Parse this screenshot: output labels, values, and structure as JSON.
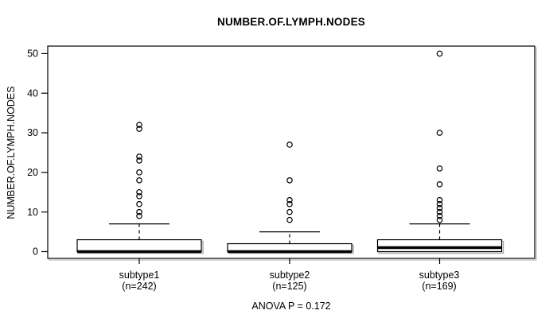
{
  "title": "NUMBER.OF.LYMPH.NODES",
  "footer": "ANOVA P = 0.172",
  "chart_data": {
    "type": "boxplot",
    "title": "NUMBER.OF.LYMPH.NODES",
    "ylabel": "NUMBER.OF.LYMPH.NODES",
    "xlabel": "",
    "ylim": [
      0,
      50
    ],
    "y_ticks": [
      0,
      10,
      20,
      30,
      40,
      50
    ],
    "grid": false,
    "annotation": "ANOVA P = 0.172",
    "colors": {
      "stroke": "#000000",
      "box_fill": "#ffffff",
      "shadow": "#a9a9a9",
      "background": "#ffffff"
    },
    "groups": [
      {
        "label": "subtype1",
        "sublabel": "(n=242)",
        "n": 242,
        "q1": 0,
        "median": 0,
        "q3": 3,
        "whisker_low": 0,
        "whisker_high": 7,
        "outliers": [
          9,
          10,
          12,
          14,
          15,
          18,
          20,
          23,
          24,
          31,
          32
        ]
      },
      {
        "label": "subtype2",
        "sublabel": "(n=125)",
        "n": 125,
        "q1": 0,
        "median": 0,
        "q3": 2,
        "whisker_low": 0,
        "whisker_high": 5,
        "outliers": [
          8,
          10,
          12,
          13,
          18,
          27
        ]
      },
      {
        "label": "subtype3",
        "sublabel": "(n=169)",
        "n": 169,
        "q1": 0,
        "median": 1,
        "q3": 3,
        "whisker_low": 0,
        "whisker_high": 7,
        "outliers": [
          8,
          9,
          10,
          11,
          12,
          13,
          17,
          21,
          30,
          50
        ]
      }
    ]
  }
}
